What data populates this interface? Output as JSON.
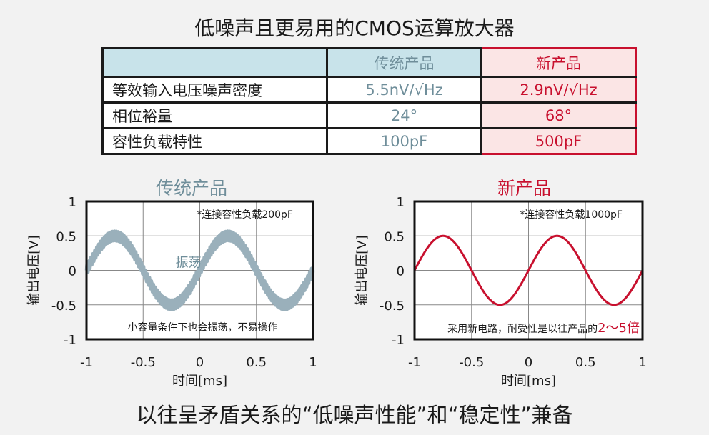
{
  "title": "低噪声且更易用的CMOS运算放大器",
  "table": {
    "headers": [
      "",
      "传统产品",
      "新产品"
    ],
    "rows": [
      {
        "label": "等效输入电压噪声密度",
        "old": "5.5nV/√Hz",
        "new": "2.9nV/√Hz"
      },
      {
        "label": "相位裕量",
        "old": "24°",
        "new": "68°"
      },
      {
        "label": "容性负载特性",
        "old": "100pF",
        "new": "500pF"
      }
    ]
  },
  "footer": "以往呈矛盾关系的“低噪声性能”和“稳定性”兼备",
  "colors": {
    "old_wave": "#9ab0bb",
    "new_wave": "#c8102e",
    "old_text": "#6f8e9a",
    "new_text": "#c8102e",
    "header_bg": "#c8e3ea"
  },
  "chart_data": [
    {
      "type": "line",
      "title": "传统产品",
      "xlabel": "时间[ms]",
      "ylabel": "输出电压[V]",
      "xlim": [
        -1,
        1
      ],
      "ylim": [
        -1,
        1
      ],
      "xticks": [
        -1,
        -0.5,
        0,
        0.5,
        1
      ],
      "yticks": [
        1,
        0.5,
        0,
        -0.5,
        -1
      ],
      "grid": true,
      "series": [
        {
          "name": "output",
          "function": "sine",
          "amplitude": 0.5,
          "period_ms": 1,
          "peak_at_ms": -0.75,
          "ringing": true,
          "ringing_amplitude": 0.07
        }
      ],
      "annotations": {
        "top_right": "*连接容性负载200pF",
        "center_label": "振荡",
        "bottom": "小容量条件下也会振荡，不易操作"
      }
    },
    {
      "type": "line",
      "title": "新产品",
      "xlabel": "时间[ms]",
      "ylabel": "输出电压[V]",
      "xlim": [
        -1,
        1
      ],
      "ylim": [
        -1,
        1
      ],
      "xticks": [
        -1,
        -0.5,
        0,
        0.5,
        1
      ],
      "yticks": [
        1,
        0.5,
        0,
        -0.5,
        -1
      ],
      "grid": true,
      "series": [
        {
          "name": "output",
          "function": "sine",
          "amplitude": 0.5,
          "period_ms": 1,
          "peak_at_ms": -0.75,
          "ringing": false
        }
      ],
      "annotations": {
        "top_right": "*连接容性负载1000pF",
        "bottom_prefix": "采用新电路，耐受性是以往产品的",
        "bottom_highlight": "2～5倍"
      }
    }
  ]
}
